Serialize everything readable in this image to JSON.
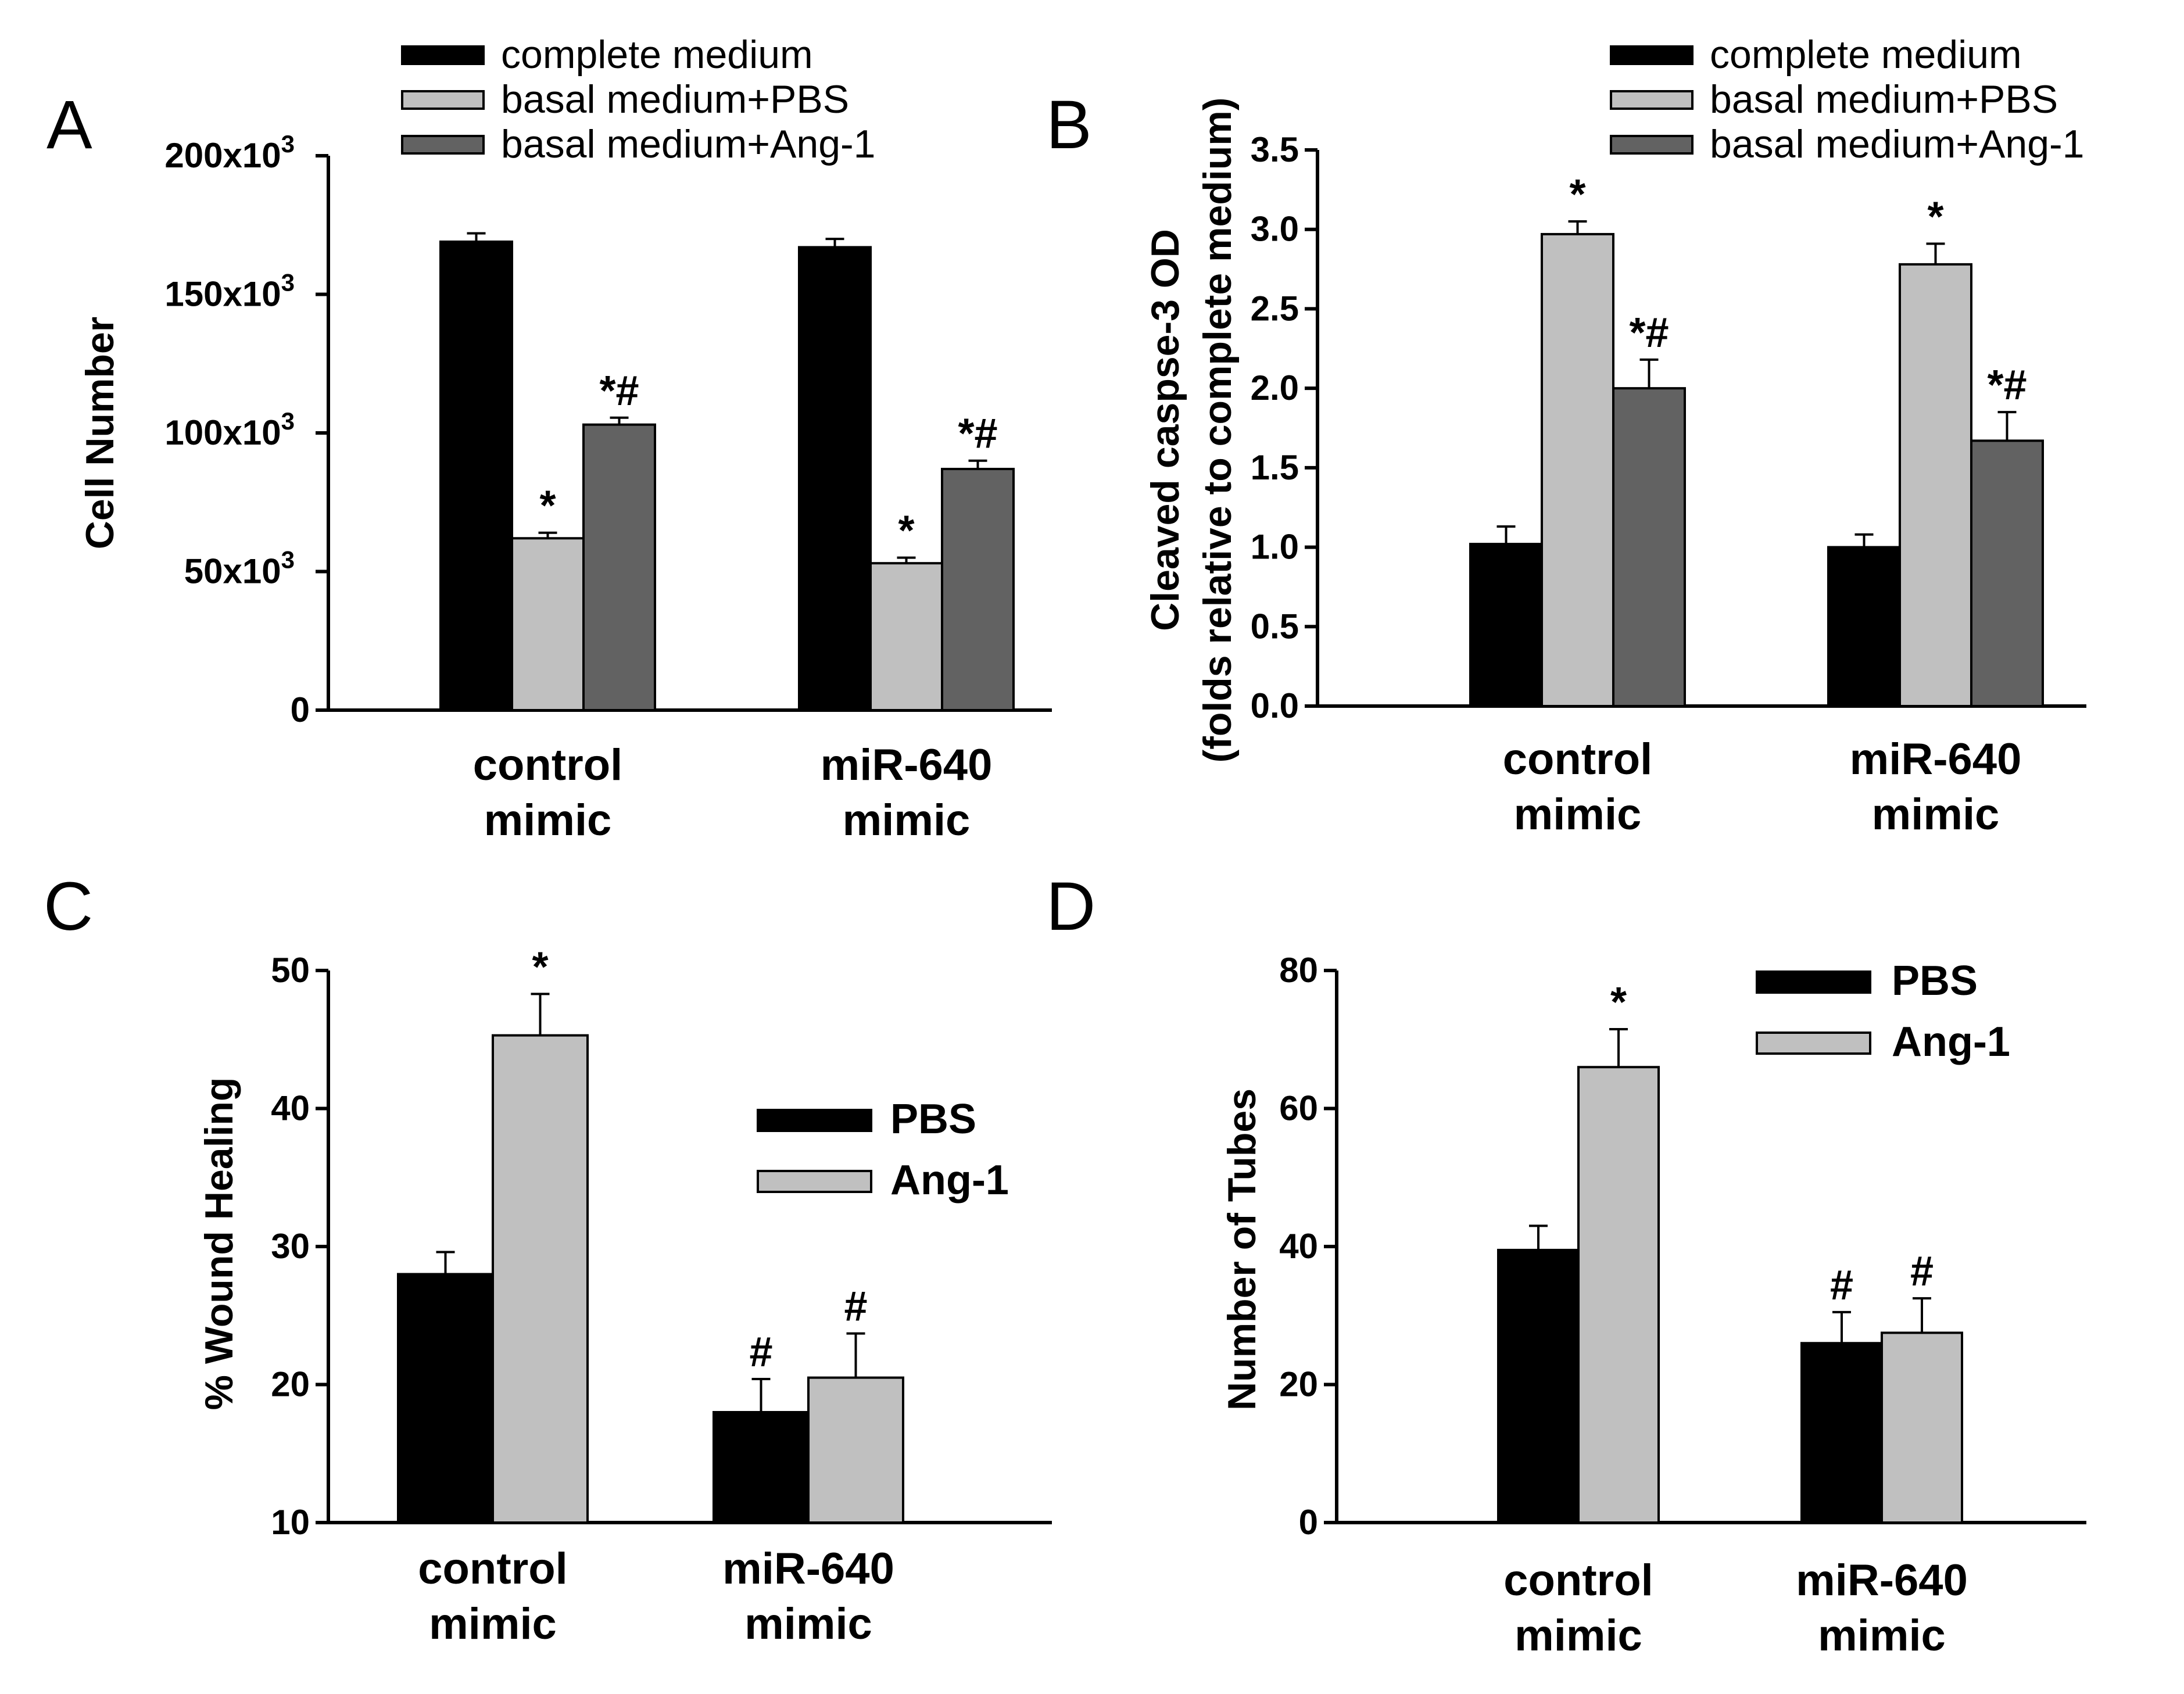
{
  "chart_data": [
    {
      "panel": "A",
      "type": "bar",
      "categories": [
        [
          "control",
          "mimic"
        ],
        [
          "miR-640",
          "mimic"
        ]
      ],
      "series": [
        {
          "name": "complete medium",
          "color": "#000000",
          "values": [
            169000,
            167000
          ],
          "errors": [
            3000,
            3000
          ]
        },
        {
          "name": "basal medium+PBS",
          "color": "#c0c0c0",
          "values": [
            62000,
            53000
          ],
          "errors": [
            2000,
            2000
          ]
        },
        {
          "name": "basal medium+Ang-1",
          "color": "#626262",
          "values": [
            103000,
            87000
          ],
          "errors": [
            2500,
            3000
          ]
        }
      ],
      "significance": [
        [
          "",
          "*",
          "*#"
        ],
        [
          "",
          "*",
          "*#"
        ]
      ],
      "ylabel": "Cell Number",
      "ylim": [
        0,
        200000
      ],
      "yticks": [
        0,
        50000,
        100000,
        150000,
        200000
      ],
      "ytick_labels": [
        {
          "base": "0",
          "exp": ""
        },
        {
          "base": "50x10",
          "exp": "3"
        },
        {
          "base": "100x10",
          "exp": "3"
        },
        {
          "base": "150x10",
          "exp": "3"
        },
        {
          "base": "200x10",
          "exp": "3"
        }
      ],
      "legend_style": "normal"
    },
    {
      "panel": "B",
      "type": "bar",
      "categories": [
        [
          "control",
          "mimic"
        ],
        [
          "miR-640",
          "mimic"
        ]
      ],
      "series": [
        {
          "name": "complete medium",
          "color": "#000000",
          "values": [
            1.02,
            1.0
          ],
          "errors": [
            0.11,
            0.08
          ]
        },
        {
          "name": "basal medium+PBS",
          "color": "#c0c0c0",
          "values": [
            2.97,
            2.78
          ],
          "errors": [
            0.08,
            0.13
          ]
        },
        {
          "name": "basal medium+Ang-1",
          "color": "#626262",
          "values": [
            2.0,
            1.67
          ],
          "errors": [
            0.18,
            0.18
          ]
        }
      ],
      "significance": [
        [
          "",
          "*",
          "*#"
        ],
        [
          "",
          "*",
          "*#"
        ]
      ],
      "ylabel": [
        "Cleaved caspse-3 OD",
        "(folds relative to complete medium)"
      ],
      "ylim": [
        0,
        3.5
      ],
      "yticks": [
        0,
        0.5,
        1,
        1.5,
        2,
        2.5,
        3,
        3.5
      ],
      "ytick_labels": [
        {
          "base": "0.0",
          "exp": ""
        },
        {
          "base": "0.5",
          "exp": ""
        },
        {
          "base": "1.0",
          "exp": ""
        },
        {
          "base": "1.5",
          "exp": ""
        },
        {
          "base": "2.0",
          "exp": ""
        },
        {
          "base": "2.5",
          "exp": ""
        },
        {
          "base": "3.0",
          "exp": ""
        },
        {
          "base": "3.5",
          "exp": ""
        }
      ],
      "legend_style": "normal"
    },
    {
      "panel": "C",
      "type": "bar",
      "categories": [
        [
          "control",
          "mimic"
        ],
        [
          "miR-640",
          "mimic"
        ]
      ],
      "series": [
        {
          "name": "PBS",
          "color": "#000000",
          "values": [
            28,
            18
          ],
          "errors": [
            1.6,
            2.4
          ]
        },
        {
          "name": "Ang-1",
          "color": "#c0c0c0",
          "values": [
            45.3,
            20.5
          ],
          "errors": [
            3.0,
            3.2
          ]
        }
      ],
      "significance": [
        [
          "",
          "*"
        ],
        [
          "#",
          "#"
        ]
      ],
      "ylabel": "% Wound Healing",
      "ylim": [
        10,
        50
      ],
      "yticks": [
        10,
        20,
        30,
        40,
        50
      ],
      "ytick_labels": [
        {
          "base": "10",
          "exp": ""
        },
        {
          "base": "20",
          "exp": ""
        },
        {
          "base": "30",
          "exp": ""
        },
        {
          "base": "40",
          "exp": ""
        },
        {
          "base": "50",
          "exp": ""
        }
      ],
      "legend_style": "bold"
    },
    {
      "panel": "D",
      "type": "bar",
      "categories": [
        [
          "control",
          "mimic"
        ],
        [
          "miR-640",
          "mimic"
        ]
      ],
      "series": [
        {
          "name": "PBS",
          "color": "#000000",
          "values": [
            39.5,
            26
          ],
          "errors": [
            3.5,
            4.5
          ]
        },
        {
          "name": "Ang-1",
          "color": "#c0c0c0",
          "values": [
            66,
            27.5
          ],
          "errors": [
            5.5,
            5.0
          ]
        }
      ],
      "significance": [
        [
          "",
          "*"
        ],
        [
          "#",
          "#"
        ]
      ],
      "ylabel": "Number of Tubes",
      "ylim": [
        0,
        80
      ],
      "yticks": [
        0,
        20,
        40,
        60,
        80
      ],
      "ytick_labels": [
        {
          "base": "0",
          "exp": ""
        },
        {
          "base": "20",
          "exp": ""
        },
        {
          "base": "40",
          "exp": ""
        },
        {
          "base": "60",
          "exp": ""
        },
        {
          "base": "80",
          "exp": ""
        }
      ],
      "legend_style": "bold"
    }
  ]
}
